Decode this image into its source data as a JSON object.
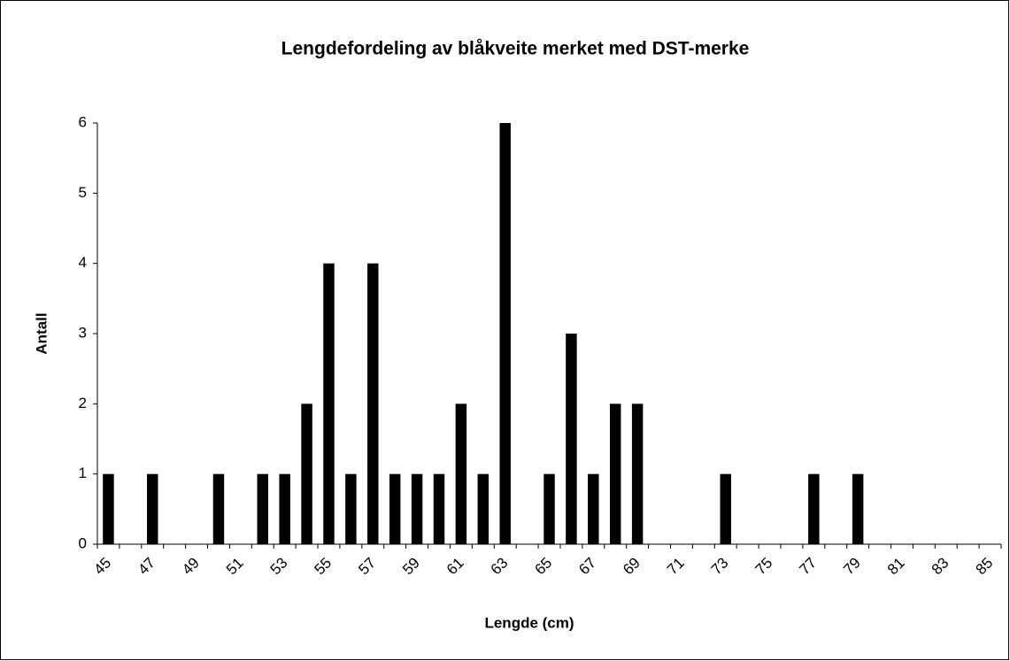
{
  "chart_data": {
    "type": "bar",
    "title": "Lengdefordeling av blåkveite merket med DST-merke",
    "x_label": "Lengde (cm)",
    "y_label": "Antall",
    "categories": [
      "45",
      null,
      "47",
      null,
      "49",
      null,
      "51",
      null,
      "53",
      null,
      "55",
      null,
      "57",
      null,
      "59",
      null,
      "61",
      null,
      "63",
      null,
      "65",
      null,
      "67",
      null,
      "69",
      null,
      "71",
      null,
      "73",
      null,
      "75",
      null,
      "77",
      null,
      "79",
      null,
      "81",
      null,
      "83",
      null,
      "85"
    ],
    "values": [
      1,
      0,
      1,
      0,
      0,
      1,
      0,
      1,
      1,
      2,
      4,
      1,
      4,
      1,
      1,
      1,
      2,
      1,
      6,
      0,
      1,
      3,
      1,
      2,
      2,
      0,
      0,
      0,
      1,
      0,
      0,
      0,
      1,
      0,
      1,
      0,
      0,
      0,
      0,
      0,
      0
    ],
    "color": "#000000",
    "ylim": [
      0,
      6
    ],
    "yticks": [
      0,
      1,
      2,
      3,
      4,
      5,
      6
    ],
    "grid": false
  }
}
